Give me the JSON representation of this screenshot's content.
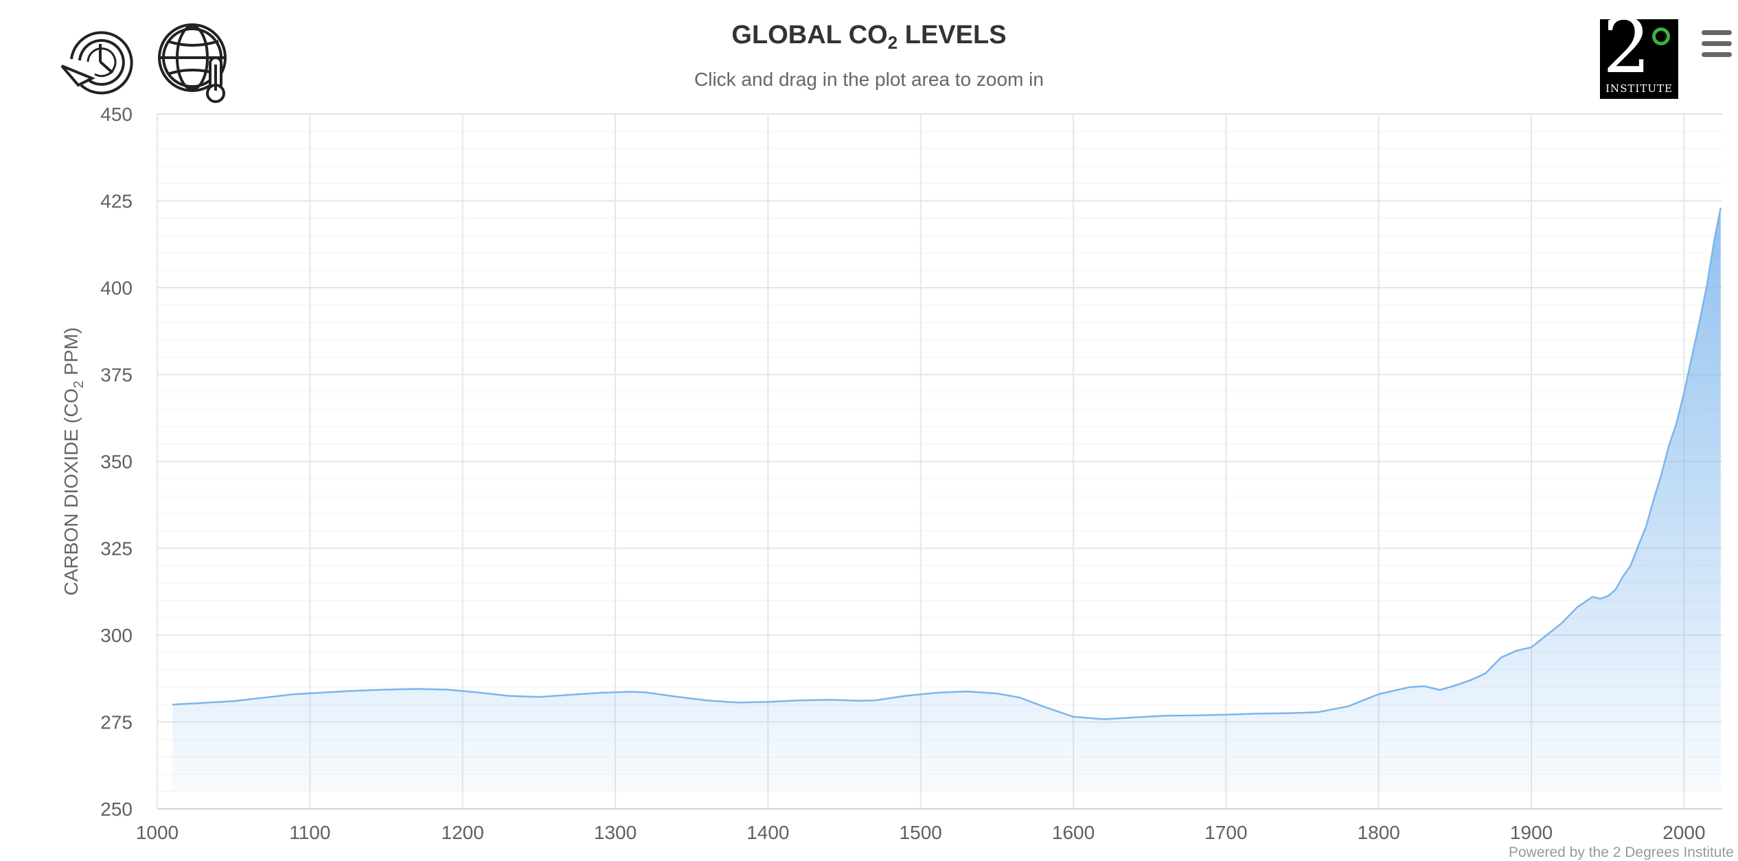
{
  "header": {
    "title_prefix": "GLOBAL CO",
    "title_sub": "2",
    "title_suffix": " LEVELS",
    "subtitle": "Click and drag in the plot area to zoom in"
  },
  "toolbar": {
    "history_icon": "history-clock-icon",
    "climate_icon": "globe-thermometer-icon"
  },
  "logo": {
    "big": "2",
    "label": "INSTITUTE"
  },
  "menu": {
    "icon": "hamburger-menu-icon"
  },
  "credits": "Powered by the 2 Degrees Institute",
  "colors": {
    "series_line": "#7cb5ec",
    "series_fill_top": "#7cb5ec",
    "grid_major": "#e6e6e6",
    "grid_minor": "#f2f2f2"
  },
  "chart_data": {
    "type": "area",
    "title": "GLOBAL CO2 LEVELS",
    "subtitle": "Click and drag in the plot area to zoom in",
    "ylabel_prefix": "CARBON DIOXIDE (CO",
    "ylabel_sub": "2",
    "ylabel_suffix": " PPM)",
    "xlim": [
      1000,
      2025
    ],
    "ylim": [
      250,
      450
    ],
    "x_ticks": [
      1000,
      1100,
      1200,
      1300,
      1400,
      1500,
      1600,
      1700,
      1800,
      1900,
      2000
    ],
    "y_ticks": [
      250,
      275,
      300,
      325,
      350,
      375,
      400,
      425,
      450
    ],
    "grid": "on",
    "series": [
      {
        "x": [
          1010,
          1030,
          1050,
          1070,
          1090,
          1110,
          1130,
          1150,
          1170,
          1190,
          1210,
          1230,
          1250,
          1270,
          1290,
          1310,
          1320,
          1340,
          1360,
          1380,
          1400,
          1420,
          1440,
          1460,
          1470,
          1490,
          1510,
          1530,
          1550,
          1565,
          1580,
          1600,
          1620,
          1640,
          1660,
          1680,
          1700,
          1720,
          1740,
          1760,
          1780,
          1800,
          1820,
          1830,
          1840,
          1850,
          1860,
          1870,
          1880,
          1890,
          1900,
          1910,
          1920,
          1930,
          1940,
          1945,
          1950,
          1955,
          1960,
          1965,
          1970,
          1975,
          1980,
          1985,
          1990,
          1995,
          2000,
          2005,
          2010,
          2015,
          2020,
          2024
        ],
        "y": [
          280,
          280.5,
          281,
          282,
          283,
          283.5,
          284,
          284.3,
          284.5,
          284.3,
          283.5,
          282.5,
          282.2,
          282.8,
          283.4,
          283.7,
          283.5,
          282.3,
          281.2,
          280.6,
          280.8,
          281.2,
          281.4,
          281.1,
          281.2,
          282.5,
          283.4,
          283.8,
          283.2,
          282,
          279.5,
          276.5,
          275.8,
          276.3,
          276.8,
          276.9,
          277.1,
          277.4,
          277.5,
          277.8,
          279.5,
          283,
          285,
          285.3,
          284.2,
          285.5,
          287,
          289,
          293.5,
          295.5,
          296.5,
          300,
          303.5,
          308,
          311,
          310.5,
          311.2,
          313,
          316.9,
          320,
          325.7,
          331,
          338.8,
          346,
          354.4,
          360.9,
          369.7,
          379.8,
          389.9,
          400.8,
          414.2,
          423
        ]
      }
    ]
  }
}
